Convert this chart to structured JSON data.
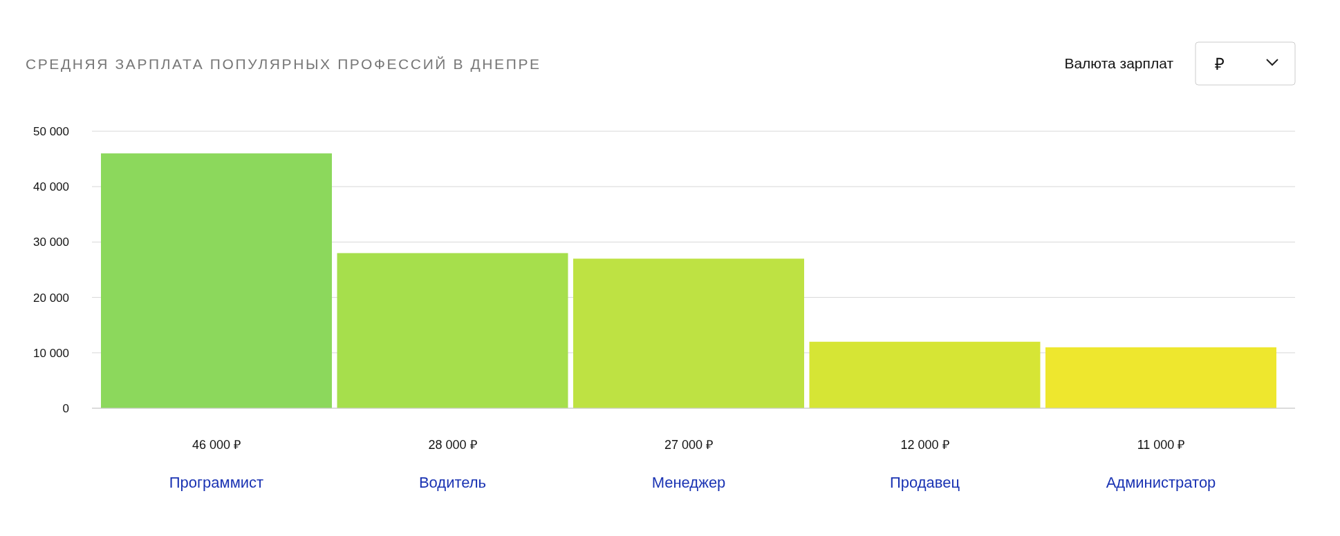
{
  "chart_data": {
    "type": "bar",
    "title": "СРЕДНЯЯ ЗАРПЛАТА ПОПУЛЯРНЫХ ПРОФЕССИЙ В ДНЕПРЕ",
    "categories": [
      "Программист",
      "Водитель",
      "Менеджер",
      "Продавец",
      "Администратор"
    ],
    "values": [
      46000,
      28000,
      27000,
      12000,
      11000
    ],
    "colors": [
      "#8cd85c",
      "#a6df4c",
      "#bee243",
      "#d6e535",
      "#eee72e"
    ],
    "value_labels": [
      "46 000 ₽",
      "28 000 ₽",
      "27 000 ₽",
      "12 000 ₽",
      "11 000 ₽"
    ],
    "ylim": [
      0,
      50000
    ],
    "yticks": [
      {
        "value": 0,
        "label": "0"
      },
      {
        "value": 10000,
        "label": "10 000"
      },
      {
        "value": 20000,
        "label": "20 000"
      },
      {
        "value": 30000,
        "label": "30 000"
      },
      {
        "value": 40000,
        "label": "40 000"
      },
      {
        "value": 50000,
        "label": "50 000"
      }
    ],
    "grid": "y",
    "annotations": [
      "Валюта зарплат",
      "₽"
    ]
  }
}
